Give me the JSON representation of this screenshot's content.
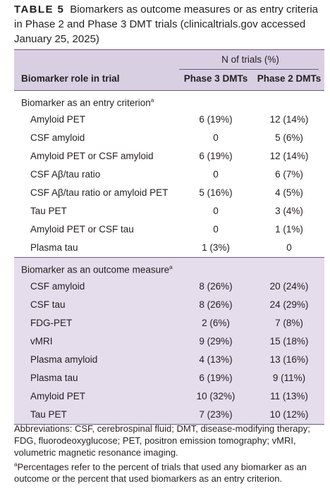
{
  "caption": {
    "label": "TABLE 5",
    "text": "Biomarkers as outcome measures or as entry criteria in Phase 2 and Phase 3 DMT trials (clinicaltrials.gov accessed January 25, 2025)"
  },
  "table": {
    "n_trials_header": "N of trials (%)",
    "col_role": "Biomarker role in trial",
    "col_phase3": "Phase 3 DMTs",
    "col_phase2": "Phase 2 DMTs",
    "sections": [
      {
        "title": "Biomarker as an entry criterion",
        "title_sup": "a",
        "rows": [
          {
            "name": "Amyloid PET",
            "phase3": "6 (19%)",
            "phase2": "12 (14%)"
          },
          {
            "name": "CSF amyloid",
            "phase3": "0",
            "phase2": "5 (6%)"
          },
          {
            "name": "Amyloid PET or CSF amyloid",
            "phase3": "6 (19%)",
            "phase2": "12 (14%)"
          },
          {
            "name": "CSF Aβ/tau ratio",
            "phase3": "0",
            "phase2": "6 (7%)"
          },
          {
            "name": "CSF Aβ/tau ratio or amyloid PET",
            "phase3": "5 (16%)",
            "phase2": "4 (5%)"
          },
          {
            "name": "Tau PET",
            "phase3": "0",
            "phase2": "3 (4%)"
          },
          {
            "name": "Amyloid PET or CSF tau",
            "phase3": "0",
            "phase2": "1 (1%)"
          },
          {
            "name": "Plasma tau",
            "phase3": "1 (3%)",
            "phase2": "0"
          }
        ]
      },
      {
        "title": "Biomarker as an outcome measure",
        "title_sup": "a",
        "rows": [
          {
            "name": "CSF amyloid",
            "phase3": "8 (26%)",
            "phase2": "20 (24%)"
          },
          {
            "name": "CSF tau",
            "phase3": "8 (26%)",
            "phase2": "24 (29%)"
          },
          {
            "name": "FDG-PET",
            "phase3": "2 (6%)",
            "phase2": "7 (8%)"
          },
          {
            "name": "vMRI",
            "phase3": "9 (29%)",
            "phase2": "15 (18%)"
          },
          {
            "name": "Plasma amyloid",
            "phase3": "4 (13%)",
            "phase2": "13 (16%)"
          },
          {
            "name": "Plasma tau",
            "phase3": "6 (19%)",
            "phase2": "9 (11%)"
          },
          {
            "name": "Amyloid PET",
            "phase3": "10 (32%)",
            "phase2": "11 (13%)"
          },
          {
            "name": "Tau PET",
            "phase3": "7 (23%)",
            "phase2": "10 (12%)"
          }
        ]
      }
    ]
  },
  "footnotes": {
    "abbreviations": "Abbreviations: CSF, cerebrospinal fluid; DMT, disease-modifying therapy; FDG, fluorodeoxyglucose; PET, positron emission tomography; vMRI, volumetric magnetic resonance imaging.",
    "note_sup": "a",
    "note": "Percentages refer to the percent of trials that used any biomarker as an outcome or the percent that used biomarkers as an entry criterion."
  },
  "colors": {
    "header_bg": "#d9cfe3",
    "outcome_bg": "#e5dcec",
    "rule": "#6a5b7d"
  }
}
